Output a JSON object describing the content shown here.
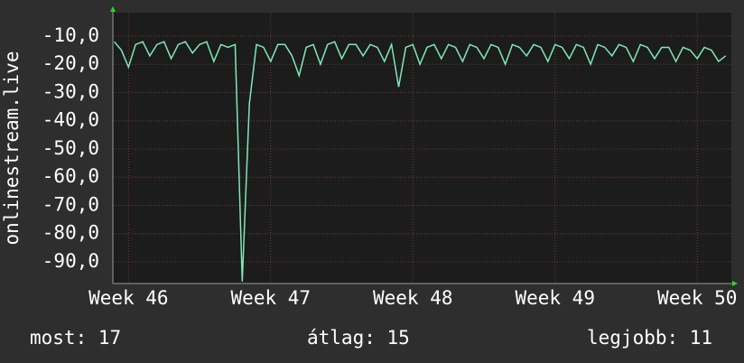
{
  "chart_data": {
    "type": "line",
    "y_label": "onlinestream.live",
    "x": [
      45.9,
      45.95,
      46.0,
      46.05,
      46.1,
      46.15,
      46.2,
      46.25,
      46.3,
      46.35,
      46.4,
      46.45,
      46.5,
      46.55,
      46.6,
      46.65,
      46.7,
      46.75,
      46.8,
      46.85,
      46.9,
      46.95,
      47.0,
      47.05,
      47.1,
      47.15,
      47.2,
      47.25,
      47.3,
      47.35,
      47.4,
      47.45,
      47.5,
      47.55,
      47.6,
      47.65,
      47.7,
      47.75,
      47.8,
      47.85,
      47.9,
      47.95,
      48.0,
      48.05,
      48.1,
      48.15,
      48.2,
      48.25,
      48.3,
      48.35,
      48.4,
      48.45,
      48.5,
      48.55,
      48.6,
      48.65,
      48.7,
      48.75,
      48.8,
      48.85,
      48.9,
      48.95,
      49.0,
      49.05,
      49.1,
      49.15,
      49.2,
      49.25,
      49.3,
      49.35,
      49.4,
      49.45,
      49.5,
      49.55,
      49.6,
      49.65,
      49.7,
      49.75,
      49.8,
      49.85,
      49.9,
      49.95,
      50.0,
      50.05,
      50.1,
      50.15,
      50.2
    ],
    "series": [
      {
        "color": "#7fe8b4",
        "values": [
          -12,
          -15,
          -21,
          -13,
          -12,
          -17,
          -13,
          -12,
          -18,
          -13,
          -12,
          -16,
          -13,
          -12,
          -19,
          -13,
          -14,
          -13,
          -97,
          -34,
          -13,
          -14,
          -19,
          -13,
          -13,
          -17,
          -24,
          -14,
          -13,
          -20,
          -13,
          -12,
          -18,
          -13,
          -13,
          -17,
          -13,
          -14,
          -19,
          -13,
          -28,
          -14,
          -13,
          -20,
          -14,
          -13,
          -18,
          -13,
          -14,
          -19,
          -13,
          -14,
          -18,
          -13,
          -14,
          -20,
          -13,
          -14,
          -17,
          -13,
          -14,
          -19,
          -13,
          -14,
          -18,
          -13,
          -14,
          -20,
          -13,
          -14,
          -17,
          -13,
          -14,
          -19,
          -13,
          -14,
          -18,
          -14,
          -14,
          -19,
          -14,
          -15,
          -18,
          -14,
          -15,
          -19,
          -17
        ]
      }
    ],
    "xlim": [
      45.89,
      50.24
    ],
    "xticks": [
      {
        "value": 46,
        "label": "Week 46"
      },
      {
        "value": 47,
        "label": "Week 47"
      },
      {
        "value": 48,
        "label": "Week 48"
      },
      {
        "value": 49,
        "label": "Week 49"
      },
      {
        "value": 50,
        "label": "Week 50"
      }
    ],
    "ylim": [
      -97.7,
      -1.7
    ],
    "yticks": [
      {
        "value": -10,
        "label": "-10,0"
      },
      {
        "value": -20,
        "label": "-20,0"
      },
      {
        "value": -30,
        "label": "-30,0"
      },
      {
        "value": -40,
        "label": "-40,0"
      },
      {
        "value": -50,
        "label": "-50,0"
      },
      {
        "value": -60,
        "label": "-60,0"
      },
      {
        "value": -70,
        "label": "-70,0"
      },
      {
        "value": -80,
        "label": "-80,0"
      },
      {
        "value": -90,
        "label": "-90,0"
      }
    ],
    "grid": true,
    "stats": [
      {
        "label": "most:",
        "value": 17
      },
      {
        "label": "átlag:",
        "value": 15
      },
      {
        "label": "legjobb:",
        "value": 11
      }
    ]
  }
}
